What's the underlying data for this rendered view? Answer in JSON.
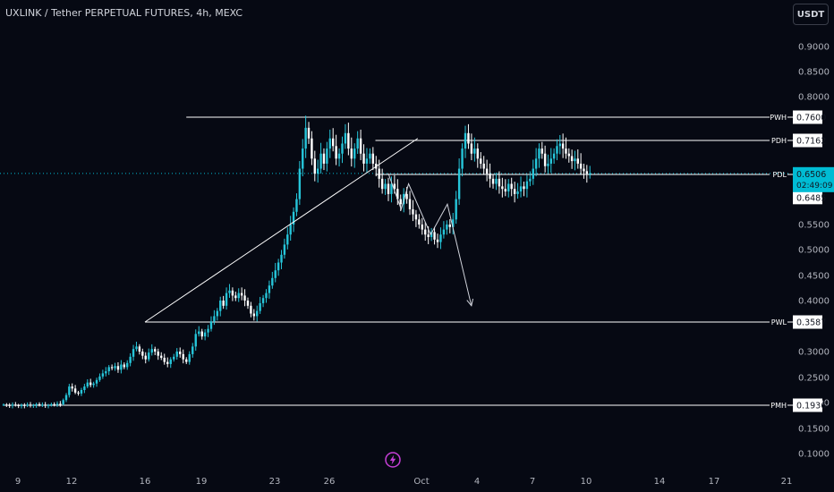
{
  "header": {
    "title": "UXLINK / Tether PERPETUAL FUTURES, 4h, MEXC",
    "currency_label": "USDT"
  },
  "logo_icon": "lightning-bolt-icon",
  "chart_data": {
    "type": "candlestick",
    "y_ticks": [
      0.9,
      0.85,
      0.8,
      0.55,
      0.5,
      0.45,
      0.4,
      0.3,
      0.25,
      0.2,
      0.15,
      0.1
    ],
    "y_tick_labels": [
      "0.9000",
      "0.8500",
      "0.8000",
      "0.5500",
      "0.5000",
      "0.4500",
      "0.4000",
      "0.3000",
      "0.2500",
      "0.2000",
      "0.1500",
      "0.1000"
    ],
    "x_ticks": [
      {
        "day": 9,
        "label": "9"
      },
      {
        "day": 12,
        "label": "12"
      },
      {
        "day": 16,
        "label": "16"
      },
      {
        "day": 19,
        "label": "19"
      },
      {
        "day": 23,
        "label": "23"
      },
      {
        "day": 26,
        "label": "26"
      },
      {
        "day": 31,
        "label": "Oct"
      },
      {
        "day": 34,
        "label": "4"
      },
      {
        "day": 37,
        "label": "7"
      },
      {
        "day": 40,
        "label": "10"
      },
      {
        "day": 44,
        "label": "14"
      },
      {
        "day": 47,
        "label": "17"
      },
      {
        "day": 51,
        "label": "21"
      }
    ],
    "x_range_days": [
      8.2,
      51.2
    ],
    "levels": [
      {
        "name": "PWH",
        "price": 0.76,
        "price_label": "0.7600",
        "from_day": 18.2
      },
      {
        "name": "PDH",
        "price": 0.7162,
        "price_label": "0.7162",
        "from_day": 28.5
      },
      {
        "name": "PDL",
        "price": 0.6485,
        "price_label": "0.6485",
        "from_day": 28.5
      },
      {
        "name": "PWL",
        "price": 0.3587,
        "price_label": "0.3587",
        "from_day": 16.0
      },
      {
        "name": "PMH",
        "price": 0.1936,
        "price_label": "0.1936",
        "from_day": 8.2
      }
    ],
    "current_price": {
      "price": 0.6506,
      "label": "0.6506",
      "countdown": "02:49:09",
      "color": "#00bcd4"
    },
    "trendline": [
      {
        "day": 16.0,
        "price": 0.3587
      },
      {
        "day": 30.8,
        "price": 0.72
      }
    ],
    "projection": [
      {
        "day": 29.2,
        "price": 0.6506
      },
      {
        "day": 29.9,
        "price": 0.58
      },
      {
        "day": 30.3,
        "price": 0.63
      },
      {
        "day": 31.5,
        "price": 0.53
      },
      {
        "day": 32.4,
        "price": 0.59
      },
      {
        "day": 33.7,
        "price": 0.39
      }
    ],
    "candle_start_day": 8.2,
    "candle_step_days": 0.1667,
    "candle_closes": [
      0.195,
      0.194,
      0.193,
      0.195,
      0.194,
      0.192,
      0.194,
      0.193,
      0.195,
      0.193,
      0.194,
      0.196,
      0.194,
      0.195,
      0.193,
      0.194,
      0.196,
      0.195,
      0.197,
      0.196,
      0.205,
      0.215,
      0.232,
      0.228,
      0.22,
      0.218,
      0.225,
      0.232,
      0.24,
      0.235,
      0.238,
      0.245,
      0.252,
      0.258,
      0.262,
      0.27,
      0.268,
      0.272,
      0.265,
      0.275,
      0.27,
      0.278,
      0.29,
      0.305,
      0.31,
      0.3,
      0.292,
      0.285,
      0.298,
      0.305,
      0.3,
      0.292,
      0.288,
      0.28,
      0.276,
      0.285,
      0.29,
      0.3,
      0.295,
      0.285,
      0.28,
      0.295,
      0.31,
      0.335,
      0.34,
      0.33,
      0.338,
      0.345,
      0.36,
      0.37,
      0.38,
      0.4,
      0.39,
      0.415,
      0.42,
      0.41,
      0.405,
      0.415,
      0.41,
      0.4,
      0.39,
      0.375,
      0.37,
      0.38,
      0.395,
      0.405,
      0.415,
      0.43,
      0.445,
      0.46,
      0.475,
      0.49,
      0.51,
      0.53,
      0.55,
      0.575,
      0.6,
      0.66,
      0.7,
      0.74,
      0.72,
      0.68,
      0.65,
      0.66,
      0.69,
      0.67,
      0.7,
      0.72,
      0.705,
      0.68,
      0.69,
      0.71,
      0.73,
      0.7,
      0.68,
      0.7,
      0.72,
      0.69,
      0.67,
      0.68,
      0.69,
      0.67,
      0.66,
      0.64,
      0.62,
      0.63,
      0.61,
      0.63,
      0.62,
      0.6,
      0.59,
      0.61,
      0.6,
      0.58,
      0.57,
      0.56,
      0.55,
      0.54,
      0.53,
      0.525,
      0.535,
      0.52,
      0.515,
      0.53,
      0.54,
      0.55,
      0.545,
      0.56,
      0.6,
      0.66,
      0.7,
      0.73,
      0.71,
      0.69,
      0.7,
      0.68,
      0.67,
      0.66,
      0.65,
      0.64,
      0.63,
      0.64,
      0.625,
      0.62,
      0.615,
      0.63,
      0.62,
      0.61,
      0.615,
      0.625,
      0.62,
      0.635,
      0.64,
      0.66,
      0.68,
      0.7,
      0.69,
      0.665,
      0.67,
      0.68,
      0.69,
      0.705,
      0.71,
      0.7,
      0.69,
      0.685,
      0.675,
      0.68,
      0.67,
      0.66,
      0.655,
      0.65,
      0.6506
    ]
  }
}
